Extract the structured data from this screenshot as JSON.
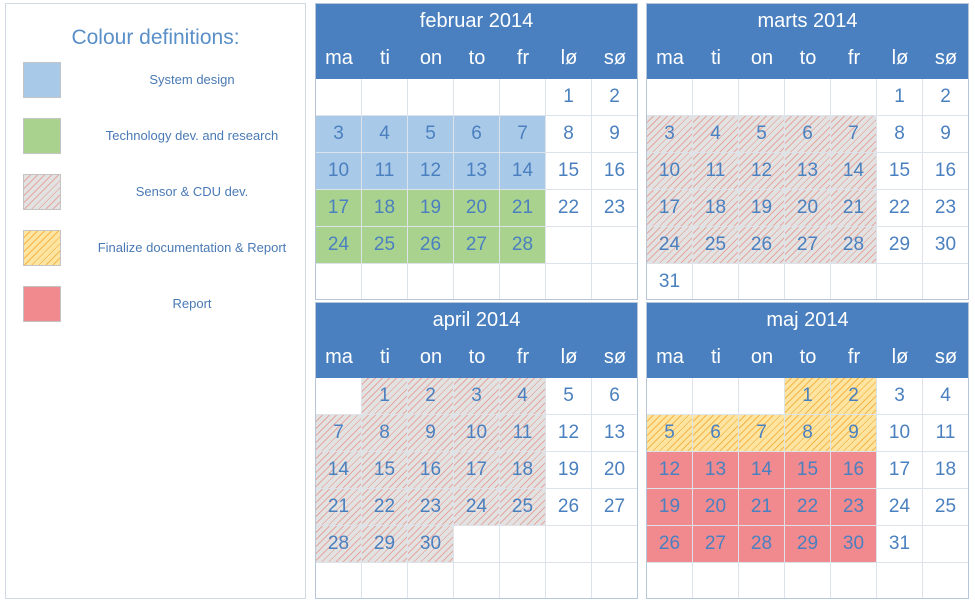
{
  "legend": {
    "title": "Colour definitions:",
    "items": [
      {
        "key": "system",
        "label": "System design",
        "color": "#a9c9e9"
      },
      {
        "key": "tech",
        "label": "Technology dev. and research",
        "color": "#a9d28f"
      },
      {
        "key": "sensor",
        "label": "Sensor & CDU dev.",
        "color": "#e2e2e2"
      },
      {
        "key": "final",
        "label": "Finalize documentation & Report",
        "color": "#fde5a1"
      },
      {
        "key": "report",
        "label": "Report",
        "color": "#f08a8f"
      }
    ]
  },
  "weekdays": [
    "ma",
    "ti",
    "on",
    "to",
    "fr",
    "lø",
    "sø"
  ],
  "months": [
    {
      "title": "februar 2014",
      "weeks": [
        [
          null,
          null,
          null,
          null,
          null,
          1,
          2
        ],
        [
          3,
          4,
          5,
          6,
          7,
          8,
          9
        ],
        [
          10,
          11,
          12,
          13,
          14,
          15,
          16
        ],
        [
          17,
          18,
          19,
          20,
          21,
          22,
          23
        ],
        [
          24,
          25,
          26,
          27,
          28,
          null,
          null
        ],
        [
          null,
          null,
          null,
          null,
          null,
          null,
          null
        ]
      ],
      "highlights": [
        {
          "phase": "system",
          "days": [
            3,
            4,
            5,
            6,
            7,
            10,
            11,
            12,
            13,
            14
          ]
        },
        {
          "phase": "tech",
          "days": [
            17,
            18,
            19,
            20,
            21,
            24,
            25,
            26,
            27,
            28
          ]
        }
      ]
    },
    {
      "title": "marts 2014",
      "weeks": [
        [
          null,
          null,
          null,
          null,
          null,
          1,
          2
        ],
        [
          3,
          4,
          5,
          6,
          7,
          8,
          9
        ],
        [
          10,
          11,
          12,
          13,
          14,
          15,
          16
        ],
        [
          17,
          18,
          19,
          20,
          21,
          22,
          23
        ],
        [
          24,
          25,
          26,
          27,
          28,
          29,
          30
        ],
        [
          31,
          null,
          null,
          null,
          null,
          null,
          null
        ]
      ],
      "highlights": [
        {
          "phase": "sensor",
          "days": [
            3,
            4,
            5,
            6,
            7,
            10,
            11,
            12,
            13,
            14,
            17,
            18,
            19,
            20,
            21,
            24,
            25,
            26,
            27,
            28
          ]
        }
      ]
    },
    {
      "title": "april 2014",
      "weeks": [
        [
          null,
          1,
          2,
          3,
          4,
          5,
          6
        ],
        [
          7,
          8,
          9,
          10,
          11,
          12,
          13
        ],
        [
          14,
          15,
          16,
          17,
          18,
          19,
          20
        ],
        [
          21,
          22,
          23,
          24,
          25,
          26,
          27
        ],
        [
          28,
          29,
          30,
          null,
          null,
          null,
          null
        ],
        [
          null,
          null,
          null,
          null,
          null,
          null,
          null
        ]
      ],
      "highlights": [
        {
          "phase": "sensor",
          "days": [
            1,
            2,
            3,
            4,
            7,
            8,
            9,
            10,
            11,
            14,
            15,
            16,
            17,
            18,
            21,
            22,
            23,
            24,
            25,
            28,
            29,
            30
          ]
        }
      ]
    },
    {
      "title": "maj 2014",
      "weeks": [
        [
          null,
          null,
          null,
          1,
          2,
          3,
          4
        ],
        [
          5,
          6,
          7,
          8,
          9,
          10,
          11
        ],
        [
          12,
          13,
          14,
          15,
          16,
          17,
          18
        ],
        [
          19,
          20,
          21,
          22,
          23,
          24,
          25
        ],
        [
          26,
          27,
          28,
          29,
          30,
          31,
          null
        ],
        [
          null,
          null,
          null,
          null,
          null,
          null,
          null
        ]
      ],
      "highlights": [
        {
          "phase": "final",
          "days": [
            1,
            2,
            5,
            6,
            7,
            8,
            9
          ]
        },
        {
          "phase": "report",
          "days": [
            12,
            13,
            14,
            15,
            16,
            19,
            20,
            21,
            22,
            23,
            26,
            27,
            28,
            29,
            30
          ]
        }
      ]
    }
  ]
}
